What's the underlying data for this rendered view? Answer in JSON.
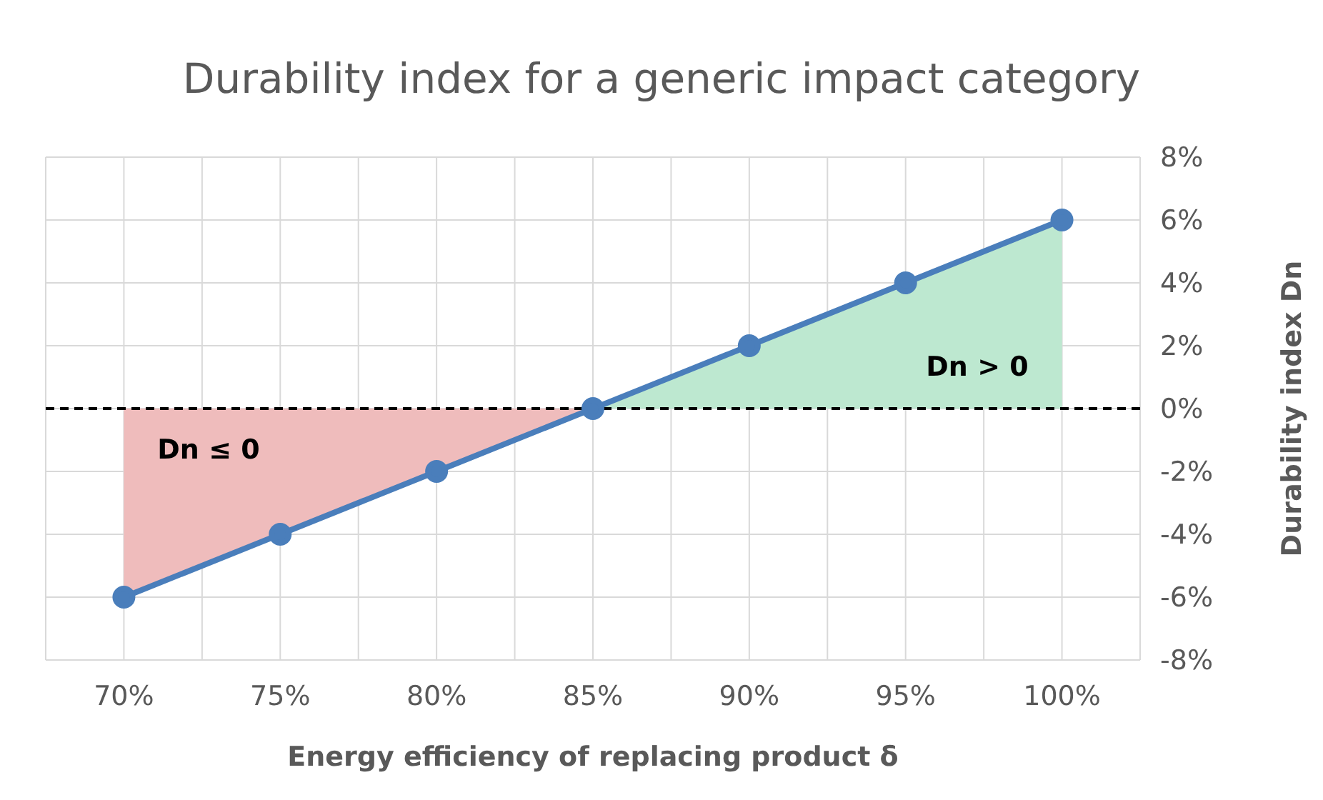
{
  "chart_data": {
    "type": "line",
    "title": "Durability index for a generic impact category",
    "xlabel": "Energy efficiency of replacing product δ",
    "ylabel": "Durability index Dn",
    "x": [
      70,
      75,
      80,
      85,
      90,
      95,
      100
    ],
    "series": [
      {
        "type": "area",
        "color": "#efbcbc",
        "values": [
          -6,
          -4,
          -2,
          0,
          null,
          null,
          null
        ]
      },
      {
        "type": "area",
        "color": "#bde8d0",
        "values": [
          null,
          null,
          null,
          0,
          2,
          4,
          6
        ]
      },
      {
        "color": "#4a7ebb",
        "marker": "circle",
        "values": [
          -6,
          -4,
          -2,
          0,
          2,
          4,
          6
        ]
      }
    ],
    "xlim": [
      67.5,
      102.5
    ],
    "xticks": [
      {
        "value": 67.5,
        "label": null
      },
      {
        "value": 70,
        "label": "70%"
      },
      {
        "value": 72.5,
        "label": null
      },
      {
        "value": 75,
        "label": "75%"
      },
      {
        "value": 77.5,
        "label": null
      },
      {
        "value": 80,
        "label": "80%"
      },
      {
        "value": 82.5,
        "label": null
      },
      {
        "value": 85,
        "label": "85%"
      },
      {
        "value": 87.5,
        "label": null
      },
      {
        "value": 90,
        "label": "90%"
      },
      {
        "value": 92.5,
        "label": null
      },
      {
        "value": 95,
        "label": "95%"
      },
      {
        "value": 97.5,
        "label": null
      },
      {
        "value": 100,
        "label": "100%"
      },
      {
        "value": 102.5,
        "label": null
      }
    ],
    "ylim": [
      -8,
      8
    ],
    "yticks": [
      {
        "value": -8,
        "label": "-8%"
      },
      {
        "value": -6,
        "label": "-6%"
      },
      {
        "value": -4,
        "label": "-4%"
      },
      {
        "value": -2,
        "label": "-2%"
      },
      {
        "value": 0,
        "label": "0%"
      },
      {
        "value": 2,
        "label": "2%"
      },
      {
        "value": 4,
        "label": "4%"
      },
      {
        "value": 6,
        "label": "6%"
      },
      {
        "value": 8,
        "label": "8%"
      }
    ],
    "ref_lines": [
      {
        "axis": "y",
        "value": 0,
        "color": "#000000",
        "line_style": "dashed"
      }
    ],
    "annotations": [
      "Dn ≤ 0",
      "Dn > 0"
    ],
    "grid": true,
    "line_style": "solid"
  }
}
